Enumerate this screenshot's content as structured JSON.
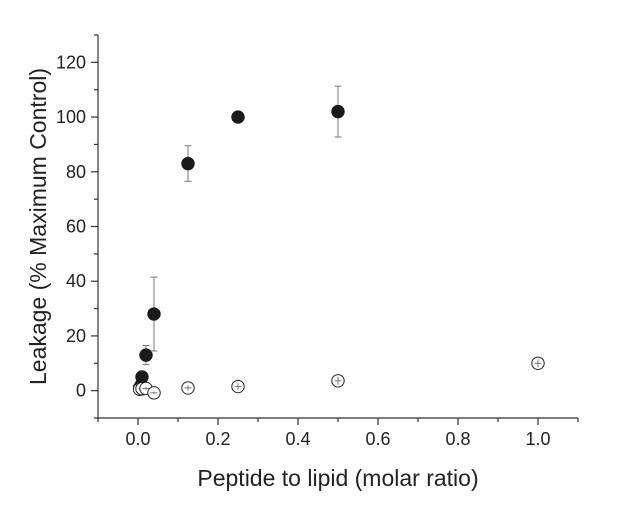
{
  "chart_data": {
    "type": "scatter",
    "title": "",
    "xlabel": "Peptide to lipid (molar ratio)",
    "ylabel": "Leakage (% Maximum Control)",
    "xlim": [
      -0.1,
      1.1
    ],
    "ylim": [
      -10,
      130
    ],
    "xticks": [
      0.0,
      0.2,
      0.4,
      0.6,
      0.8,
      1.0
    ],
    "xtick_labels": [
      "0.0",
      "0.2",
      "0.4",
      "0.6",
      "0.8",
      "1.0"
    ],
    "yticks": [
      0,
      20,
      40,
      60,
      80,
      100,
      120
    ],
    "ytick_labels": [
      "0",
      "20",
      "40",
      "60",
      "80",
      "100",
      "120"
    ],
    "grid": false,
    "legend": "none",
    "series": [
      {
        "marker": "filled-circle",
        "color": "#1a1a1a",
        "points": [
          {
            "x": 0.004,
            "y": 1,
            "err": 0.5
          },
          {
            "x": 0.008,
            "y": 2,
            "err": 0.8
          },
          {
            "x": 0.01,
            "y": 5,
            "err": 1
          },
          {
            "x": 0.02,
            "y": 13,
            "err": 3.5
          },
          {
            "x": 0.04,
            "y": 28,
            "err": 13.5
          },
          {
            "x": 0.125,
            "y": 83,
            "err": 6.5
          },
          {
            "x": 0.25,
            "y": 100,
            "err": 0
          },
          {
            "x": 0.5,
            "y": 102,
            "err": 9.3
          }
        ]
      },
      {
        "marker": "open-circle",
        "color": "#222222",
        "points": [
          {
            "x": 0.004,
            "y": 0.5,
            "err": 0.3
          },
          {
            "x": 0.01,
            "y": 0.7,
            "err": 0.4
          },
          {
            "x": 0.02,
            "y": 0.8,
            "err": 0.5
          },
          {
            "x": 0.04,
            "y": -0.8,
            "err": 0.5
          },
          {
            "x": 0.125,
            "y": 1,
            "err": 1
          },
          {
            "x": 0.25,
            "y": 1.5,
            "err": 1.2
          },
          {
            "x": 0.5,
            "y": 3.6,
            "err": 1.5
          },
          {
            "x": 1.0,
            "y": 10,
            "err": 1.5
          }
        ]
      }
    ]
  }
}
